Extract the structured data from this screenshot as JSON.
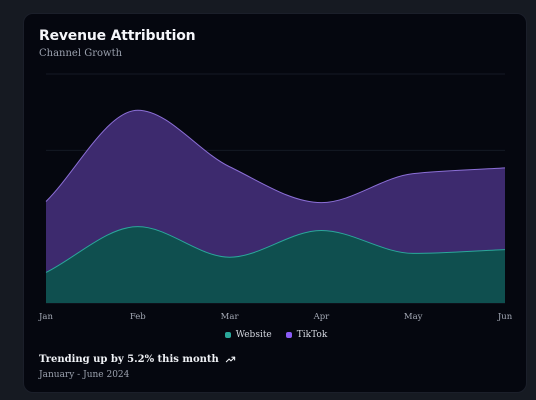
{
  "card": {
    "title": "Revenue Attribution",
    "subtitle": "Channel Growth",
    "footer_trend": "Trending up by 5.2% this month",
    "footer_trend_icon": "trending-up-icon",
    "footer_range": "January - June 2024"
  },
  "chart_data": {
    "type": "area",
    "stacked": true,
    "categories": [
      "Jan",
      "Feb",
      "Mar",
      "Apr",
      "May",
      "Jun"
    ],
    "series": [
      {
        "name": "Website",
        "values": [
          80,
          200,
          120,
          190,
          130,
          140
        ],
        "color": "#0f4f4f",
        "stroke": "#2aa79a"
      },
      {
        "name": "TikTok",
        "values": [
          186,
          305,
          237,
          73,
          209,
          214
        ],
        "color": "#3d2a6e",
        "stroke": "#8b6fd6"
      }
    ],
    "ylim": [
      0,
      600
    ],
    "grid": true,
    "legend": "bottom-center",
    "colors": {
      "website_legend": "#2aa79a",
      "tiktok_legend": "#8b5cf6"
    }
  }
}
